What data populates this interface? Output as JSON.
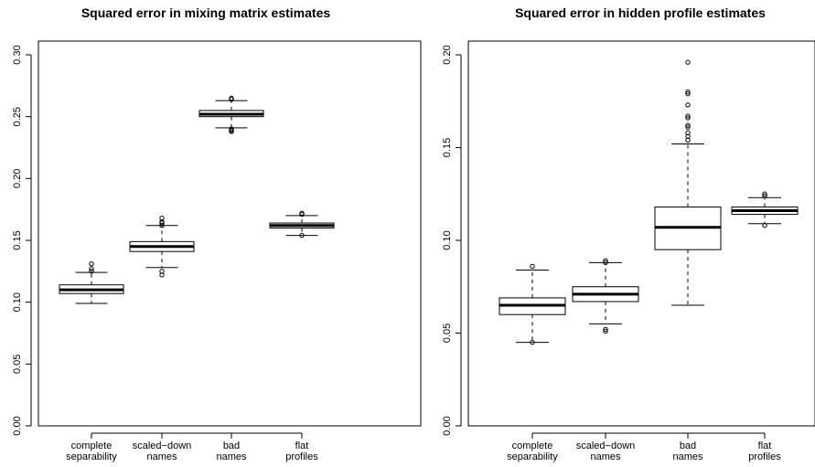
{
  "chart_data": [
    {
      "type": "box",
      "title": "Squared error in mixing matrix estimates",
      "xlabel": "",
      "ylabel": "",
      "ylim": [
        0,
        0.3
      ],
      "yticks": [
        "0.00",
        "0.05",
        "0.10",
        "0.15",
        "0.20",
        "0.25",
        "0.30"
      ],
      "categories": [
        [
          "complete",
          "separability"
        ],
        [
          "scaled−down",
          "names"
        ],
        [
          "bad",
          "names"
        ],
        [
          "flat",
          "profiles"
        ]
      ],
      "boxes": [
        {
          "whisker_low": 0.099,
          "q1": 0.107,
          "median": 0.11,
          "q3": 0.114,
          "whisker_high": 0.124,
          "outliers": [
            0.125,
            0.127,
            0.131
          ]
        },
        {
          "whisker_low": 0.128,
          "q1": 0.141,
          "median": 0.145,
          "q3": 0.149,
          "whisker_high": 0.162,
          "outliers": [
            0.122,
            0.125,
            0.162,
            0.164,
            0.165,
            0.168
          ]
        },
        {
          "whisker_low": 0.241,
          "q1": 0.25,
          "median": 0.252,
          "q3": 0.255,
          "whisker_high": 0.263,
          "outliers": [
            0.238,
            0.239,
            0.24,
            0.264,
            0.265
          ]
        },
        {
          "whisker_low": 0.154,
          "q1": 0.16,
          "median": 0.162,
          "q3": 0.164,
          "whisker_high": 0.17,
          "outliers": [
            0.154,
            0.171,
            0.172
          ]
        }
      ]
    },
    {
      "type": "box",
      "title": "Squared error in hidden profile estimates",
      "xlabel": "",
      "ylabel": "",
      "ylim": [
        0,
        0.2
      ],
      "yticks": [
        "0.00",
        "0.05",
        "0.10",
        "0.15",
        "0.20"
      ],
      "categories": [
        [
          "complete",
          "separability"
        ],
        [
          "scaled−down",
          "names"
        ],
        [
          "bad",
          "names"
        ],
        [
          "flat",
          "profiles"
        ]
      ],
      "boxes": [
        {
          "whisker_low": 0.045,
          "q1": 0.06,
          "median": 0.065,
          "q3": 0.069,
          "whisker_high": 0.084,
          "outliers": [
            0.045,
            0.086
          ]
        },
        {
          "whisker_low": 0.055,
          "q1": 0.067,
          "median": 0.071,
          "q3": 0.075,
          "whisker_high": 0.088,
          "outliers": [
            0.051,
            0.052,
            0.088,
            0.089
          ]
        },
        {
          "whisker_low": 0.065,
          "q1": 0.095,
          "median": 0.107,
          "q3": 0.118,
          "whisker_high": 0.152,
          "outliers": [
            0.154,
            0.156,
            0.158,
            0.161,
            0.162,
            0.166,
            0.167,
            0.173,
            0.179,
            0.18,
            0.196
          ]
        },
        {
          "whisker_low": 0.109,
          "q1": 0.114,
          "median": 0.116,
          "q3": 0.118,
          "whisker_high": 0.123,
          "outliers": [
            0.108,
            0.124,
            0.125
          ]
        }
      ]
    }
  ]
}
